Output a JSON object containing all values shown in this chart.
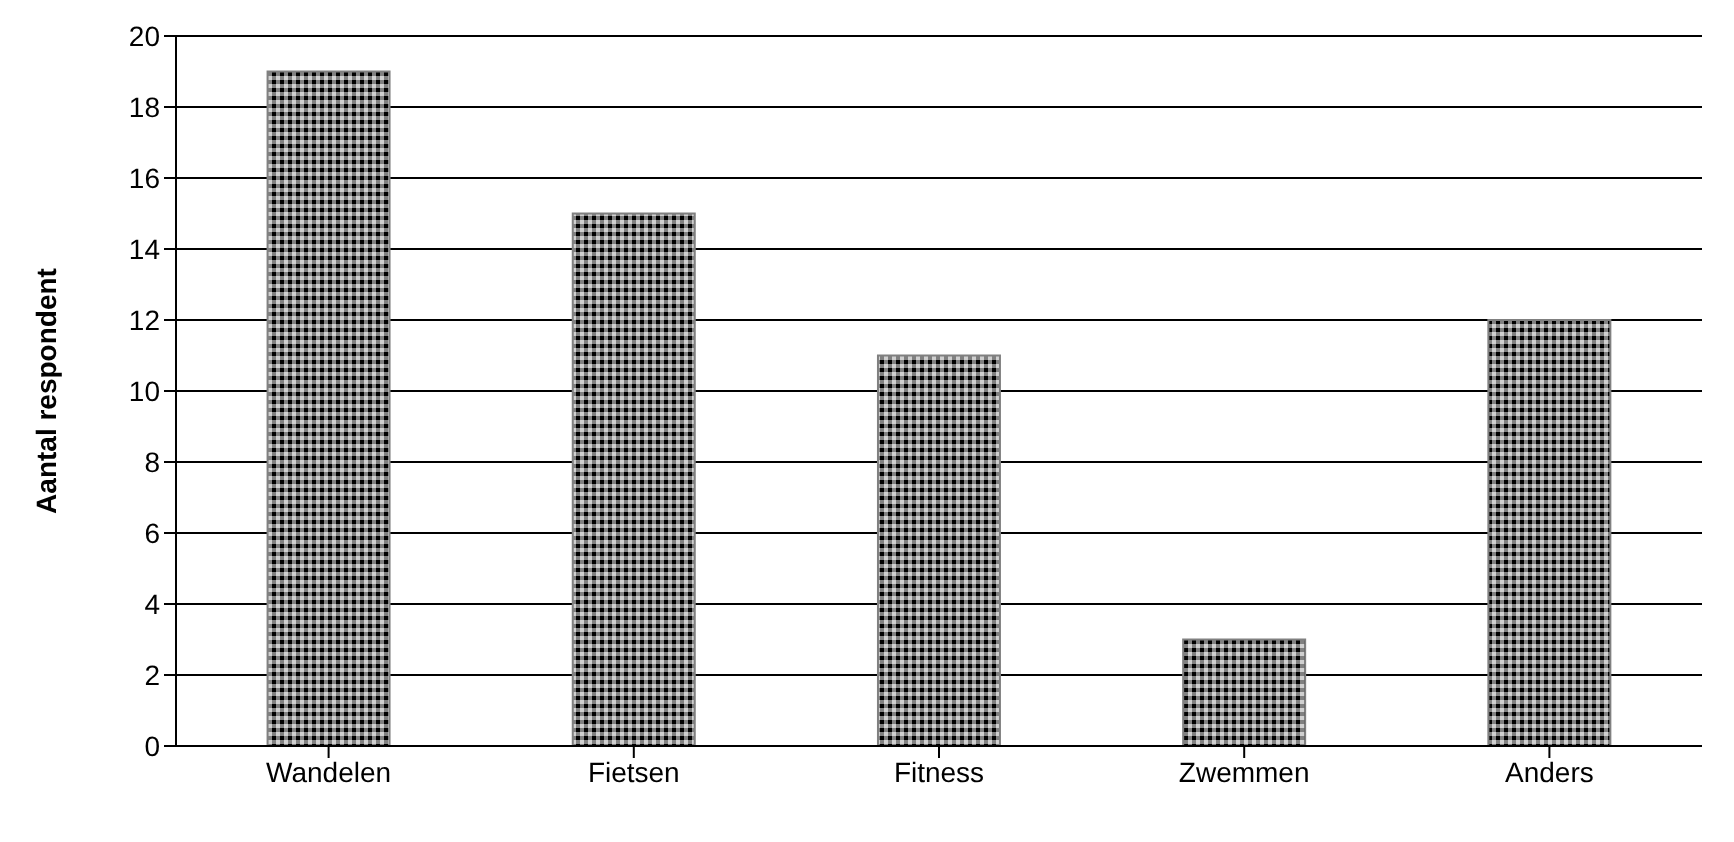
{
  "chart_data": {
    "type": "bar",
    "ylabel": "Aantal respondent",
    "categories": [
      "Wandelen",
      "Fietsen",
      "Fitness",
      "Zwemmen",
      "Anders"
    ],
    "values": [
      19,
      15,
      11,
      3,
      12
    ],
    "color": "#808080",
    "ylim": [
      0,
      20
    ],
    "yticks": [
      0,
      2,
      4,
      6,
      8,
      10,
      12,
      14,
      16,
      18,
      20
    ],
    "grid": "y"
  }
}
